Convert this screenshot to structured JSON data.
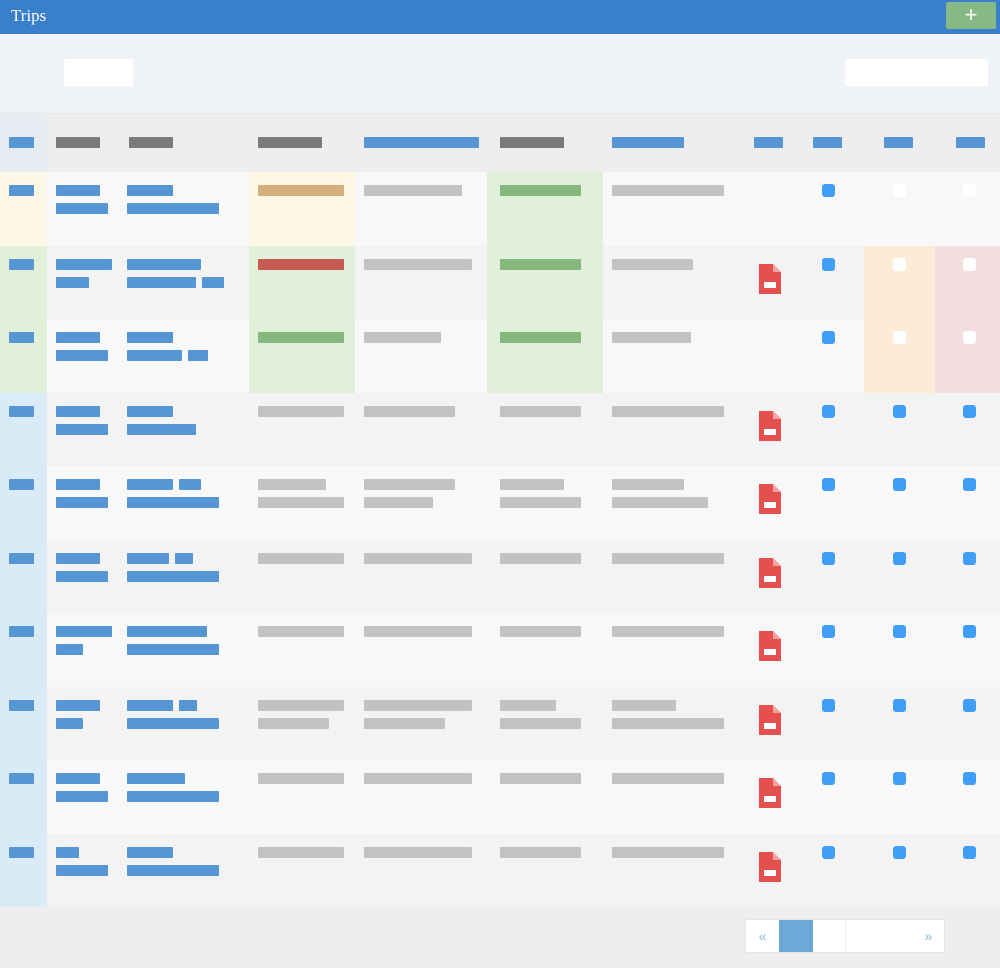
{
  "app": {
    "title": "Trips",
    "add_label": "+"
  },
  "filters": {
    "filter_value": "",
    "search_value": ""
  },
  "colors": {
    "header_blue": "#3a7fc9",
    "add_green": "#86b984",
    "link_blue": "#5696d2",
    "text_gray": "#c2c2c2",
    "header_gray": "#7b7b7b",
    "ok_green": "#86b87e",
    "warn_tan": "#d2af7b",
    "alert_red": "#c85a53",
    "check_blue": "#419ef7",
    "pdf_red": "#e4504e",
    "highlight_yellow": "#fdf8e6",
    "highlight_green": "#e1f0da",
    "highlight_blue": "#d9ebf7",
    "highlight_orange": "#fcebd6",
    "highlight_pink": "#f2dedf"
  },
  "table": {
    "icons": {
      "document": "pdf-file-icon",
      "flag": "checkbox-icon"
    },
    "rows": [
      {
        "status": "yellow",
        "date_status": "tan",
        "check_status": "green",
        "has_pdf": false,
        "checks": [
          true,
          false,
          false
        ],
        "highlight_checks": false
      },
      {
        "status": "green",
        "date_status": "red",
        "check_status": "green",
        "has_pdf": true,
        "checks": [
          true,
          false,
          false
        ],
        "highlight_checks": true
      },
      {
        "status": "green",
        "date_status": "green",
        "check_status": "green",
        "has_pdf": false,
        "checks": [
          true,
          false,
          false
        ],
        "highlight_checks": true
      },
      {
        "status": "blue",
        "date_status": "none",
        "check_status": "none",
        "has_pdf": true,
        "checks": [
          true,
          true,
          true
        ],
        "highlight_checks": false
      },
      {
        "status": "blue",
        "date_status": "none",
        "check_status": "none",
        "has_pdf": true,
        "checks": [
          true,
          true,
          true
        ],
        "highlight_checks": false
      },
      {
        "status": "blue",
        "date_status": "none",
        "check_status": "none",
        "has_pdf": true,
        "checks": [
          true,
          true,
          true
        ],
        "highlight_checks": false
      },
      {
        "status": "blue",
        "date_status": "none",
        "check_status": "none",
        "has_pdf": true,
        "checks": [
          true,
          true,
          true
        ],
        "highlight_checks": false
      },
      {
        "status": "blue",
        "date_status": "none",
        "check_status": "none",
        "has_pdf": true,
        "checks": [
          true,
          true,
          true
        ],
        "highlight_checks": false
      },
      {
        "status": "blue",
        "date_status": "none",
        "check_status": "none",
        "has_pdf": true,
        "checks": [
          true,
          true,
          true
        ],
        "highlight_checks": false
      },
      {
        "status": "blue",
        "date_status": "none",
        "check_status": "none",
        "has_pdf": true,
        "checks": [
          true,
          true,
          true
        ],
        "highlight_checks": false
      }
    ]
  },
  "pagination": {
    "prev": "«",
    "next": "»",
    "current_page": 1
  }
}
